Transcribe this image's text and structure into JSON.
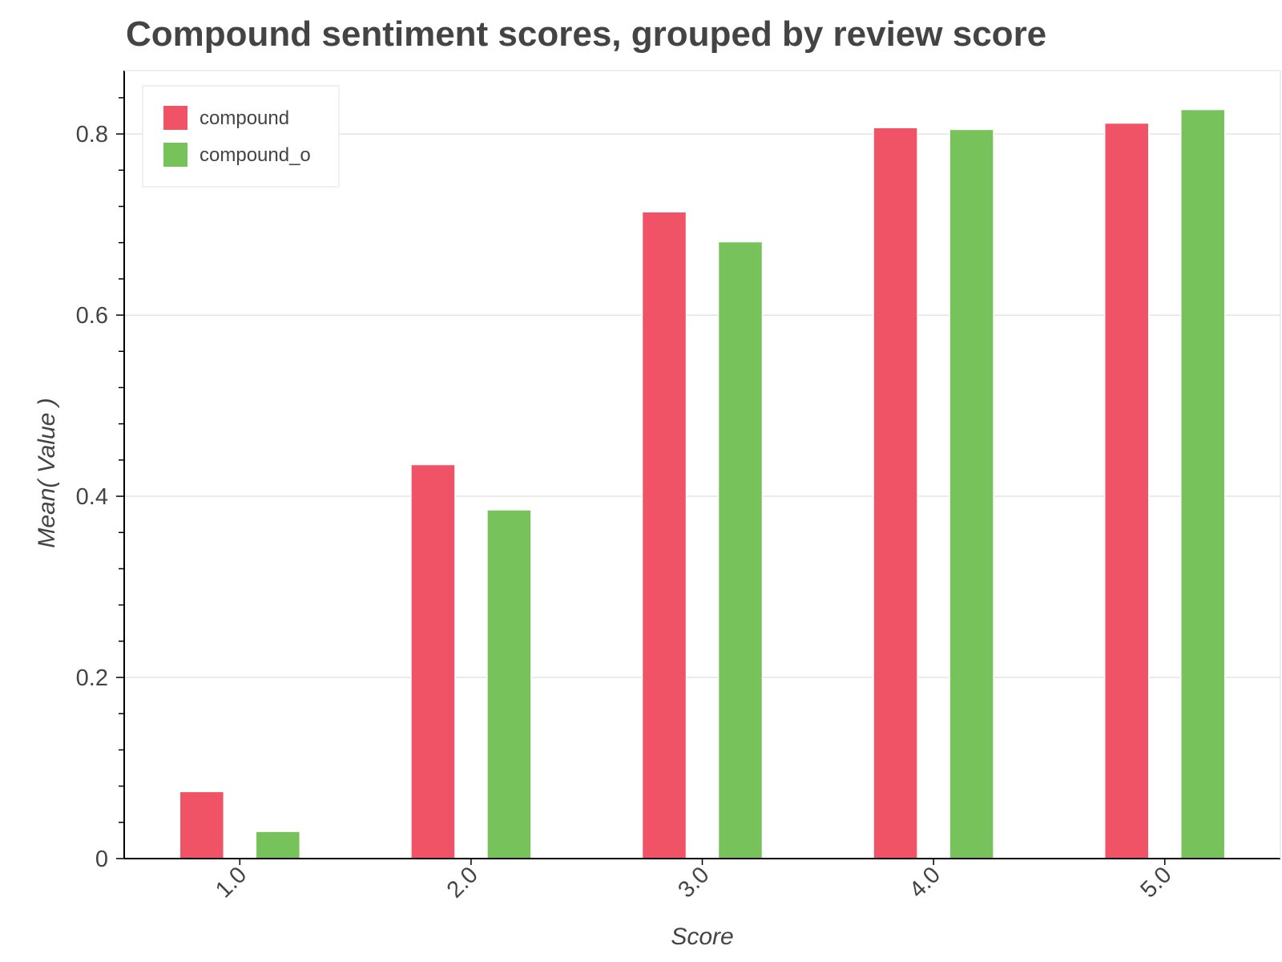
{
  "chart_data": {
    "type": "bar",
    "title": "Compound sentiment scores, grouped by review score",
    "xlabel": "Score",
    "ylabel": "Mean( Value )",
    "categories": [
      "1.0",
      "2.0",
      "3.0",
      "4.0",
      "5.0"
    ],
    "series": [
      {
        "name": "compound",
        "color": "#f05365",
        "values": [
          0.074,
          0.435,
          0.714,
          0.807,
          0.812
        ]
      },
      {
        "name": "compound_o",
        "color": "#78c25b",
        "values": [
          0.03,
          0.385,
          0.681,
          0.805,
          0.827
        ]
      }
    ],
    "ylim": [
      0,
      0.87
    ],
    "yticks": [
      0,
      0.2,
      0.4,
      0.6,
      0.8
    ],
    "ytick_labels": [
      "0",
      "0.2",
      "0.4",
      "0.6",
      "0.8"
    ],
    "grid": "horizontal",
    "legend_position": "top-left"
  }
}
